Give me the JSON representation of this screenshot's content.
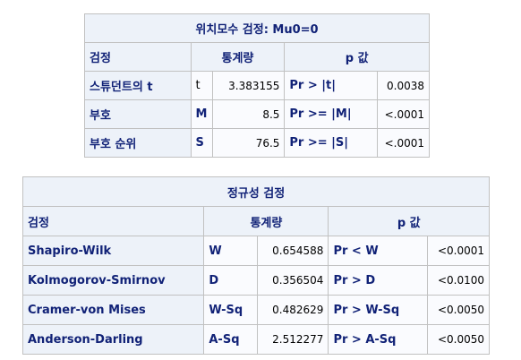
{
  "location_test": {
    "title": "위치모수 검정: Mu0=0",
    "headers": {
      "test": "검정",
      "statistic": "통계량",
      "pvalue": "p 값"
    },
    "rows": [
      {
        "test": "스튜던트의 t",
        "symbol": "t",
        "value": "3.383155",
        "p_label": "Pr > |t|",
        "p_value": "0.0038"
      },
      {
        "test": "부호",
        "symbol": "M",
        "value": "8.5",
        "p_label": "Pr >= |M|",
        "p_value": "<.0001"
      },
      {
        "test": "부호 순위",
        "symbol": "S",
        "value": "76.5",
        "p_label": "Pr >= |S|",
        "p_value": "<.0001"
      }
    ]
  },
  "normality_test": {
    "title": "정규성 검정",
    "headers": {
      "test": "검정",
      "statistic": "통계량",
      "pvalue": "p 값"
    },
    "rows": [
      {
        "test": "Shapiro-Wilk",
        "symbol": "W",
        "value": "0.654588",
        "p_label": "Pr < W",
        "p_value": "<0.0001"
      },
      {
        "test": "Kolmogorov-Smirnov",
        "symbol": "D",
        "value": "0.356504",
        "p_label": "Pr > D",
        "p_value": "<0.0100"
      },
      {
        "test": "Cramer-von Mises",
        "symbol": "W-Sq",
        "value": "0.482629",
        "p_label": "Pr > W-Sq",
        "p_value": "<0.0050"
      },
      {
        "test": "Anderson-Darling",
        "symbol": "A-Sq",
        "value": "2.512277",
        "p_label": "Pr > A-Sq",
        "p_value": "<0.0050"
      }
    ]
  }
}
